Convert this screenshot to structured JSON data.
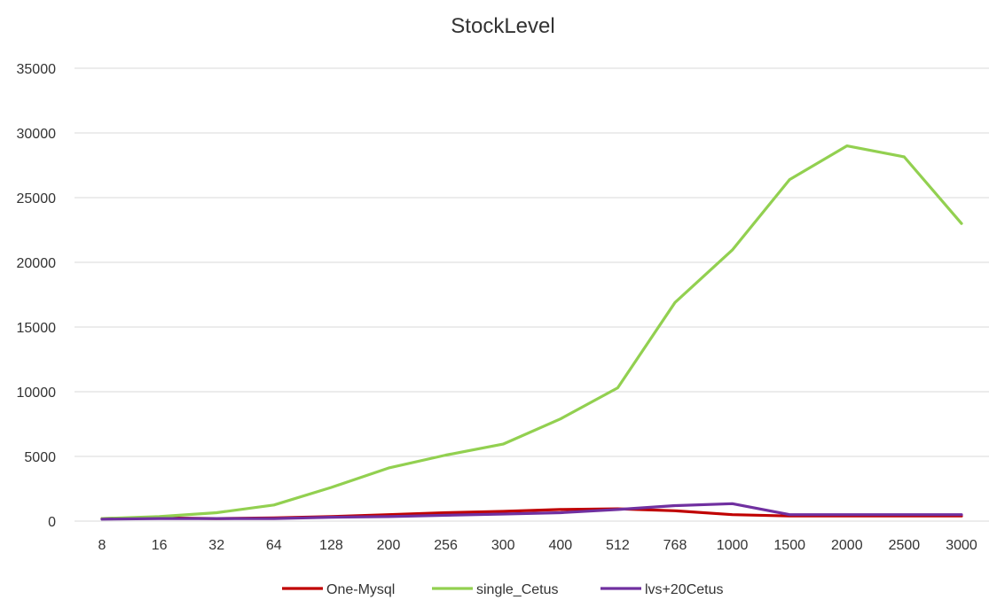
{
  "chart_data": {
    "type": "line",
    "title": "StockLevel",
    "categories": [
      "8",
      "16",
      "32",
      "64",
      "128",
      "200",
      "256",
      "300",
      "400",
      "512",
      "768",
      "1000",
      "1500",
      "2000",
      "2500",
      "3000"
    ],
    "ylim": [
      0,
      35000
    ],
    "yticks": [
      0,
      5000,
      10000,
      15000,
      20000,
      25000,
      30000,
      35000
    ],
    "grid": true,
    "legend_position": "bottom",
    "series": [
      {
        "name": "One-Mysql",
        "color": "#c00000",
        "values": [
          200,
          250,
          200,
          250,
          350,
          500,
          650,
          750,
          900,
          950,
          800,
          500,
          400,
          400,
          400,
          400
        ]
      },
      {
        "name": "single_Cetus",
        "color": "#92d050",
        "values": [
          200,
          350,
          650,
          1250,
          2600,
          4100,
          5100,
          5950,
          7900,
          10300,
          16900,
          20950,
          26400,
          29000,
          28150,
          23000
        ]
      },
      {
        "name": "lvs+20Cetus",
        "color": "#7030a0",
        "values": [
          150,
          200,
          200,
          200,
          300,
          350,
          450,
          550,
          650,
          900,
          1200,
          1350,
          500,
          500,
          500,
          500
        ]
      }
    ]
  }
}
